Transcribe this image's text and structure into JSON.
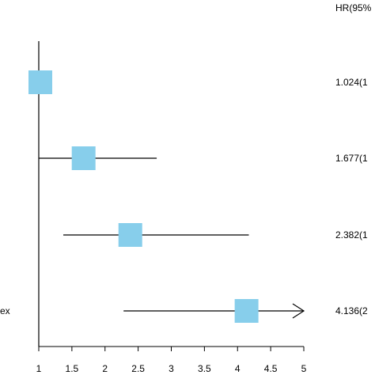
{
  "chart_data": {
    "type": "forest",
    "hr_header": "HR(95%",
    "x_ticks": [
      "1",
      "1.5",
      "2",
      "2.5",
      "3",
      "3.5",
      "4",
      "4.5",
      "5"
    ],
    "xlim": [
      1,
      5
    ],
    "reference_line": 1,
    "rows": [
      {
        "label": "",
        "hr": 1.024,
        "lower": 1.024,
        "upper": 1.024,
        "hr_text": "1.024(1",
        "arrow": false
      },
      {
        "label": "",
        "hr": 1.677,
        "lower": 1.0,
        "upper": 2.78,
        "hr_text": "1.677(1",
        "arrow": false
      },
      {
        "label": "",
        "hr": 2.382,
        "lower": 1.37,
        "upper": 4.17,
        "hr_text": "2.382(1",
        "arrow": false
      },
      {
        "label": "ex",
        "hr": 4.136,
        "lower": 2.28,
        "upper": 5.0,
        "hr_text": "4.136(2",
        "arrow": true
      }
    ],
    "colors": {
      "marker": "#87CEEB",
      "line": "#000000"
    }
  }
}
